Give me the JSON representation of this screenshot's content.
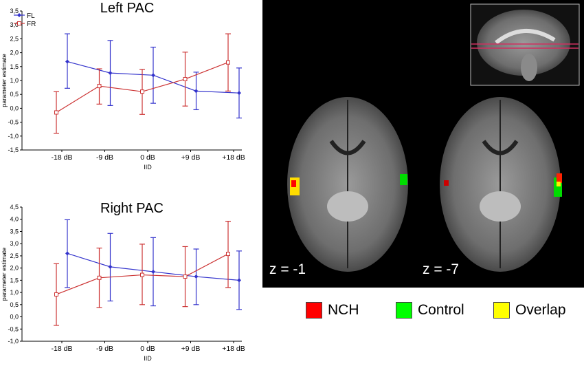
{
  "chart_data": [
    {
      "type": "line",
      "title": "Left PAC",
      "xlabel": "IID",
      "ylabel": "parameter estimate",
      "categories": [
        "-18 dB",
        "-9 dB",
        "0 dB",
        "+9 dB",
        "+18 dB"
      ],
      "ylim": [
        -1.5,
        3.5
      ],
      "yticks": [
        "-1,5",
        "-1,0",
        "-0,5",
        "0,0",
        "0,5",
        "1,0",
        "1,5",
        "2,0",
        "2,5",
        "3,0",
        "3,5"
      ],
      "legend_position": "top-left",
      "series": [
        {
          "name": "FL",
          "color": "#3333cc",
          "marker": "diamond",
          "values": [
            1.68,
            1.27,
            1.19,
            0.62,
            0.55
          ],
          "lower": [
            0.72,
            0.1,
            0.18,
            -0.05,
            -0.35
          ],
          "upper": [
            2.68,
            2.44,
            2.2,
            1.3,
            1.45
          ]
        },
        {
          "name": "FR",
          "color": "#cc3333",
          "marker": "square",
          "values": [
            -0.15,
            0.8,
            0.6,
            1.05,
            1.65
          ],
          "lower": [
            -0.9,
            0.15,
            -0.22,
            0.08,
            0.62
          ],
          "upper": [
            0.6,
            1.42,
            1.4,
            2.02,
            2.68
          ]
        }
      ]
    },
    {
      "type": "line",
      "title": "Right PAC",
      "xlabel": "IID",
      "ylabel": "parameter estimate",
      "categories": [
        "-18 dB",
        "-9 dB",
        "0 dB",
        "+9 dB",
        "+18 dB"
      ],
      "ylim": [
        -1.0,
        4.5
      ],
      "yticks": [
        "-1,0",
        "-0,5",
        "0,0",
        "0,5",
        "1,0",
        "1,5",
        "2,0",
        "2,5",
        "3,0",
        "3,5",
        "4,0",
        "4,5"
      ],
      "series": [
        {
          "name": "FL",
          "color": "#3333cc",
          "marker": "diamond",
          "values": [
            2.6,
            2.05,
            1.85,
            1.65,
            1.5
          ],
          "lower": [
            1.2,
            0.65,
            0.45,
            0.5,
            0.3
          ],
          "upper": [
            3.98,
            3.42,
            3.25,
            2.78,
            2.7
          ]
        },
        {
          "name": "FR",
          "color": "#cc3333",
          "marker": "square",
          "values": [
            0.92,
            1.6,
            1.72,
            1.65,
            2.58
          ],
          "lower": [
            -0.35,
            0.38,
            0.5,
            0.42,
            1.2
          ],
          "upper": [
            2.18,
            2.82,
            2.98,
            2.88,
            3.92
          ]
        }
      ]
    }
  ],
  "brain_figure": {
    "slice_labels": [
      "z = -1",
      "z = -7"
    ],
    "legend": [
      {
        "label": "NCH",
        "color": "#ff0000"
      },
      {
        "label": "Control",
        "color": "#00ff00"
      },
      {
        "label": "Overlap",
        "color": "#ffff00"
      }
    ]
  }
}
